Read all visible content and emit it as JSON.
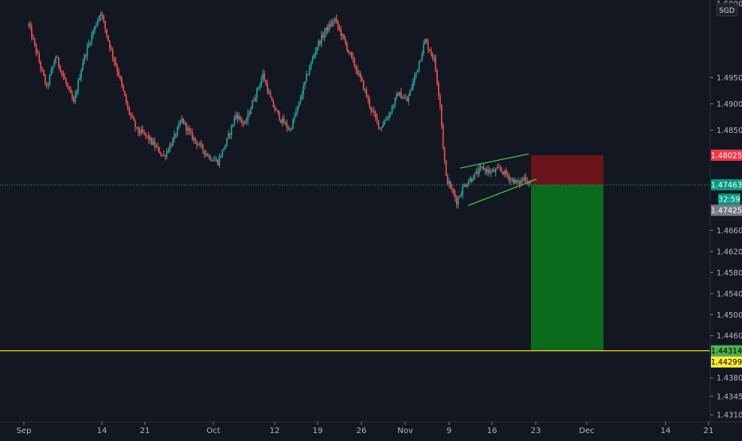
{
  "chart_data": {
    "type": "candlestick",
    "currency": "SGD",
    "y_axis": {
      "range": [
        1.4298,
        1.5097
      ],
      "ticks": [
        "1.49500",
        "1.49000",
        "1.48500",
        "1.46600",
        "1.46200",
        "1.45800",
        "1.45400",
        "1.45000",
        "1.44600",
        "1.43800",
        "1.43450",
        "1.43100"
      ],
      "top_clipped_label": "1.50000"
    },
    "x_axis": {
      "tick_labels": [
        "Sep",
        "14",
        "21",
        "Oct",
        "12",
        "19",
        "26",
        "Nov",
        "9",
        "16",
        "23",
        "Dec",
        "14",
        "21"
      ]
    },
    "price_tags": [
      {
        "name": "stop-loss",
        "value": "1.48025",
        "color": "#f23645",
        "text_color": "#ffffff"
      },
      {
        "name": "entry",
        "value": "1.47463",
        "color": "#089981",
        "text_color": "#ffffff"
      },
      {
        "name": "countdown",
        "value": "32:59",
        "color": "#089981",
        "text_color": "#ffffff"
      },
      {
        "name": "current",
        "value": "1.47425",
        "color": "#787b86",
        "text_color": "#ffffff"
      },
      {
        "name": "target",
        "value": "1.44314",
        "color": "#4caf50",
        "text_color": "#000000"
      },
      {
        "name": "horizontal-line",
        "value": "1.44299",
        "color": "#ffeb3b",
        "text_color": "#000000"
      }
    ],
    "lines": {
      "horizontal_level": 1.44315,
      "horizontal_color": "#f2d21b",
      "entry_dotted_level": 1.47463
    },
    "position": {
      "entry": 1.47463,
      "stop": 1.48025,
      "target": 1.44315,
      "profit_color": "#0b6b1c",
      "loss_color": "#6b1419"
    },
    "wedge": {
      "color": "#3fd34a",
      "upper_price": [
        1.4778,
        1.4805
      ],
      "lower_price": [
        1.4707,
        1.4757
      ]
    },
    "colors": {
      "background": "#131722",
      "up": "#26a69a",
      "down": "#ef5350"
    },
    "price_path": [
      [
        0,
        1.505
      ],
      [
        6,
        1.499
      ],
      [
        12,
        1.493
      ],
      [
        18,
        1.499
      ],
      [
        24,
        1.4945
      ],
      [
        30,
        1.49
      ],
      [
        36,
        1.498
      ],
      [
        42,
        1.503
      ],
      [
        48,
        1.5075
      ],
      [
        54,
        1.501
      ],
      [
        60,
        1.4955
      ],
      [
        66,
        1.489
      ],
      [
        72,
        1.485
      ],
      [
        78,
        1.484
      ],
      [
        84,
        1.482
      ],
      [
        90,
        1.48
      ],
      [
        96,
        1.483
      ],
      [
        102,
        1.487
      ],
      [
        108,
        1.484
      ],
      [
        114,
        1.482
      ],
      [
        120,
        1.48
      ],
      [
        126,
        1.479
      ],
      [
        132,
        1.483
      ],
      [
        138,
        1.488
      ],
      [
        144,
        1.486
      ],
      [
        150,
        1.491
      ],
      [
        156,
        1.4955
      ],
      [
        162,
        1.49
      ],
      [
        168,
        1.487
      ],
      [
        174,
        1.485
      ],
      [
        180,
        1.49
      ],
      [
        186,
        1.496
      ],
      [
        192,
        1.501
      ],
      [
        198,
        1.504
      ],
      [
        204,
        1.506
      ],
      [
        210,
        1.502
      ],
      [
        216,
        1.498
      ],
      [
        222,
        1.494
      ],
      [
        228,
        1.489
      ],
      [
        234,
        1.4855
      ],
      [
        240,
        1.488
      ],
      [
        246,
        1.492
      ],
      [
        252,
        1.4905
      ],
      [
        258,
        1.496
      ],
      [
        264,
        1.502
      ],
      [
        270,
        1.4985
      ],
      [
        274,
        1.49
      ],
      [
        276,
        1.482
      ],
      [
        278,
        1.476
      ],
      [
        282,
        1.4735
      ],
      [
        285,
        1.4715
      ],
      [
        290,
        1.4745
      ],
      [
        296,
        1.4762
      ],
      [
        302,
        1.4778
      ],
      [
        308,
        1.477
      ],
      [
        314,
        1.4776
      ],
      [
        320,
        1.476
      ],
      [
        326,
        1.4748
      ],
      [
        330,
        1.476
      ],
      [
        334,
        1.475
      ]
    ]
  }
}
